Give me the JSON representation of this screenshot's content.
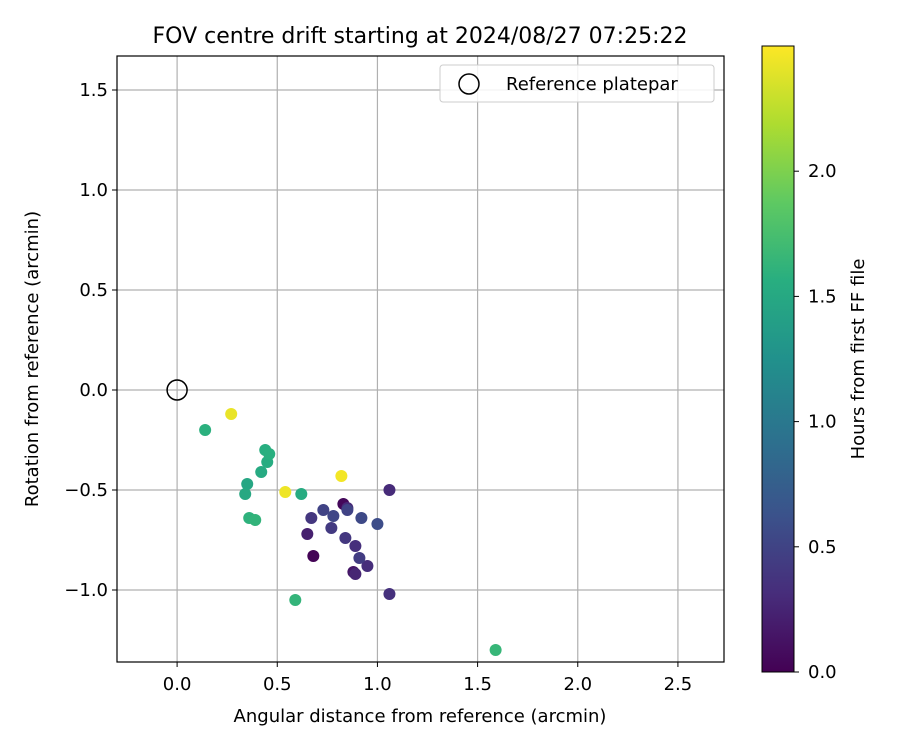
{
  "chart_data": {
    "type": "scatter",
    "title": "FOV centre drift starting at 2024/08/27 07:25:22",
    "xlabel": "Angular distance from reference (arcmin)",
    "ylabel": "Rotation from reference (arcmin)",
    "xlim": [
      -0.3,
      2.73
    ],
    "ylim": [
      -1.36,
      1.67
    ],
    "xticks": [
      0.0,
      0.5,
      1.0,
      1.5,
      2.0,
      2.5
    ],
    "xtick_labels": [
      "0.0",
      "0.5",
      "1.0",
      "1.5",
      "2.0",
      "2.5"
    ],
    "yticks": [
      -1.0,
      -0.5,
      0.0,
      0.5,
      1.0,
      1.5
    ],
    "ytick_labels": [
      "−1.0",
      "−0.5",
      "0.0",
      "0.5",
      "1.0",
      "1.5"
    ],
    "grid": true,
    "legend": {
      "placement": "top-right",
      "entries": [
        "Reference platepar"
      ]
    },
    "reference_point": {
      "name": "Reference platepar",
      "x": 0.0,
      "y": 0.0
    },
    "colorbar": {
      "label": "Hours from first FF file",
      "colormap": "viridis",
      "range": [
        0.0,
        2.5
      ],
      "ticks": [
        0.0,
        0.5,
        1.0,
        1.5,
        2.0
      ],
      "tick_labels": [
        "0.0",
        "0.5",
        "1.0",
        "1.5",
        "2.0"
      ]
    },
    "points": [
      {
        "x": 0.68,
        "y": -0.83,
        "hours": 0.02
      },
      {
        "x": 0.83,
        "y": -0.57,
        "hours": 0.05
      },
      {
        "x": 0.88,
        "y": -0.91,
        "hours": 0.15
      },
      {
        "x": 0.65,
        "y": -0.72,
        "hours": 0.22
      },
      {
        "x": 0.89,
        "y": -0.92,
        "hours": 0.26
      },
      {
        "x": 0.85,
        "y": -0.59,
        "hours": 0.28
      },
      {
        "x": 1.06,
        "y": -0.5,
        "hours": 0.3
      },
      {
        "x": 0.95,
        "y": -0.88,
        "hours": 0.32
      },
      {
        "x": 0.89,
        "y": -0.78,
        "hours": 0.33
      },
      {
        "x": 1.06,
        "y": -1.02,
        "hours": 0.35
      },
      {
        "x": 0.67,
        "y": -0.64,
        "hours": 0.4
      },
      {
        "x": 0.84,
        "y": -0.74,
        "hours": 0.4
      },
      {
        "x": 0.77,
        "y": -0.69,
        "hours": 0.42
      },
      {
        "x": 0.91,
        "y": -0.84,
        "hours": 0.44
      },
      {
        "x": 0.73,
        "y": -0.6,
        "hours": 0.5
      },
      {
        "x": 0.85,
        "y": -0.6,
        "hours": 0.5
      },
      {
        "x": 0.78,
        "y": -0.63,
        "hours": 0.52
      },
      {
        "x": 0.92,
        "y": -0.64,
        "hours": 0.55
      },
      {
        "x": 1.0,
        "y": -0.67,
        "hours": 0.58
      },
      {
        "x": 0.35,
        "y": -0.47,
        "hours": 1.48
      },
      {
        "x": 0.34,
        "y": -0.52,
        "hours": 1.5
      },
      {
        "x": 0.42,
        "y": -0.41,
        "hours": 1.52
      },
      {
        "x": 0.62,
        "y": -0.52,
        "hours": 1.53
      },
      {
        "x": 0.45,
        "y": -0.36,
        "hours": 1.54
      },
      {
        "x": 0.44,
        "y": -0.3,
        "hours": 1.56
      },
      {
        "x": 0.46,
        "y": -0.32,
        "hours": 1.57
      },
      {
        "x": 0.14,
        "y": -0.2,
        "hours": 1.58
      },
      {
        "x": 0.36,
        "y": -0.64,
        "hours": 1.6
      },
      {
        "x": 0.39,
        "y": -0.65,
        "hours": 1.62
      },
      {
        "x": 0.59,
        "y": -1.05,
        "hours": 1.63
      },
      {
        "x": 1.59,
        "y": -1.3,
        "hours": 1.65
      },
      {
        "x": 0.27,
        "y": -0.12,
        "hours": 2.42
      },
      {
        "x": 0.54,
        "y": -0.51,
        "hours": 2.44
      },
      {
        "x": 0.82,
        "y": -0.43,
        "hours": 2.46
      }
    ]
  }
}
